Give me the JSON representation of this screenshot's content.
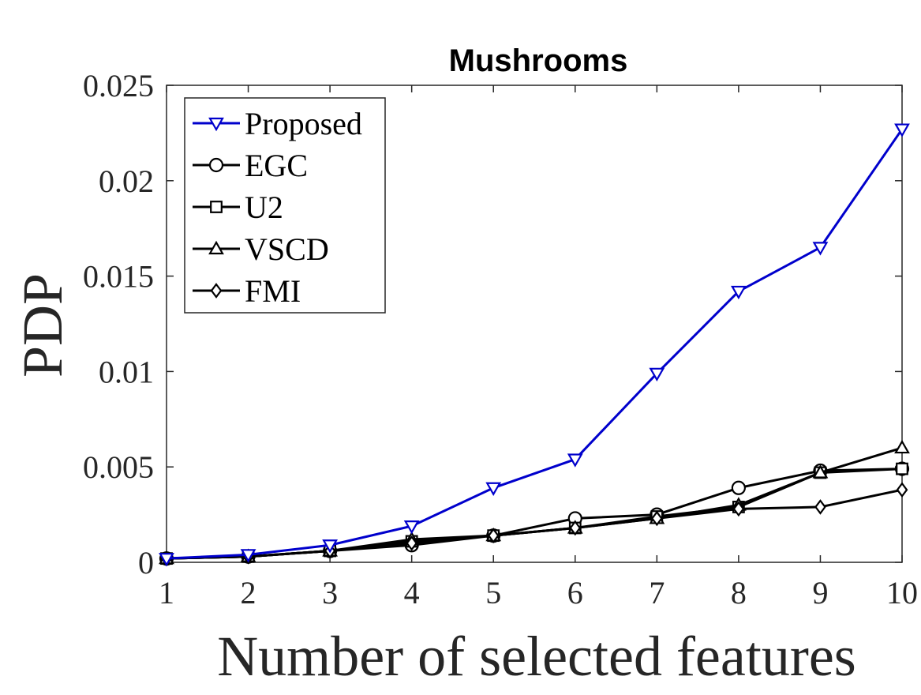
{
  "chart_data": {
    "type": "line",
    "title": "Mushrooms",
    "xlabel": "Number of selected features",
    "ylabel": "PDP",
    "x": [
      1,
      2,
      3,
      4,
      5,
      6,
      7,
      8,
      9,
      10
    ],
    "xlim": [
      1,
      10
    ],
    "ylim": [
      0,
      0.025
    ],
    "xticks": [
      1,
      2,
      3,
      4,
      5,
      6,
      7,
      8,
      9,
      10
    ],
    "yticks": [
      0,
      0.005,
      0.01,
      0.015,
      0.02,
      0.025
    ],
    "ytick_labels": [
      "0",
      "0.005",
      "0.01",
      "0.015",
      "0.02",
      "0.025"
    ],
    "grid": false,
    "legend_position": "top-left",
    "series": [
      {
        "name": "Proposed",
        "color": "#0000cc",
        "marker": "triangle-down",
        "values": [
          0.0002,
          0.0004,
          0.0009,
          0.0019,
          0.0039,
          0.0054,
          0.0099,
          0.0142,
          0.0165,
          0.0227
        ]
      },
      {
        "name": "EGC",
        "color": "#000000",
        "marker": "circle",
        "values": [
          0.0002,
          0.0003,
          0.0006,
          0.0009,
          0.0014,
          0.0023,
          0.0025,
          0.0039,
          0.0048,
          0.0049
        ]
      },
      {
        "name": "U2",
        "color": "#000000",
        "marker": "square",
        "values": [
          0.0002,
          0.0003,
          0.0006,
          0.0011,
          0.0014,
          0.0018,
          0.0024,
          0.0029,
          0.0047,
          0.0049
        ]
      },
      {
        "name": "VSCD",
        "color": "#000000",
        "marker": "triangle-up",
        "values": [
          0.0002,
          0.0003,
          0.0006,
          0.0012,
          0.0014,
          0.0018,
          0.0023,
          0.003,
          0.0047,
          0.006
        ]
      },
      {
        "name": "FMI",
        "color": "#000000",
        "marker": "diamond",
        "values": [
          0.0002,
          0.0003,
          0.0006,
          0.001,
          0.0014,
          0.0018,
          0.0023,
          0.0028,
          0.0029,
          0.0038
        ]
      }
    ]
  }
}
